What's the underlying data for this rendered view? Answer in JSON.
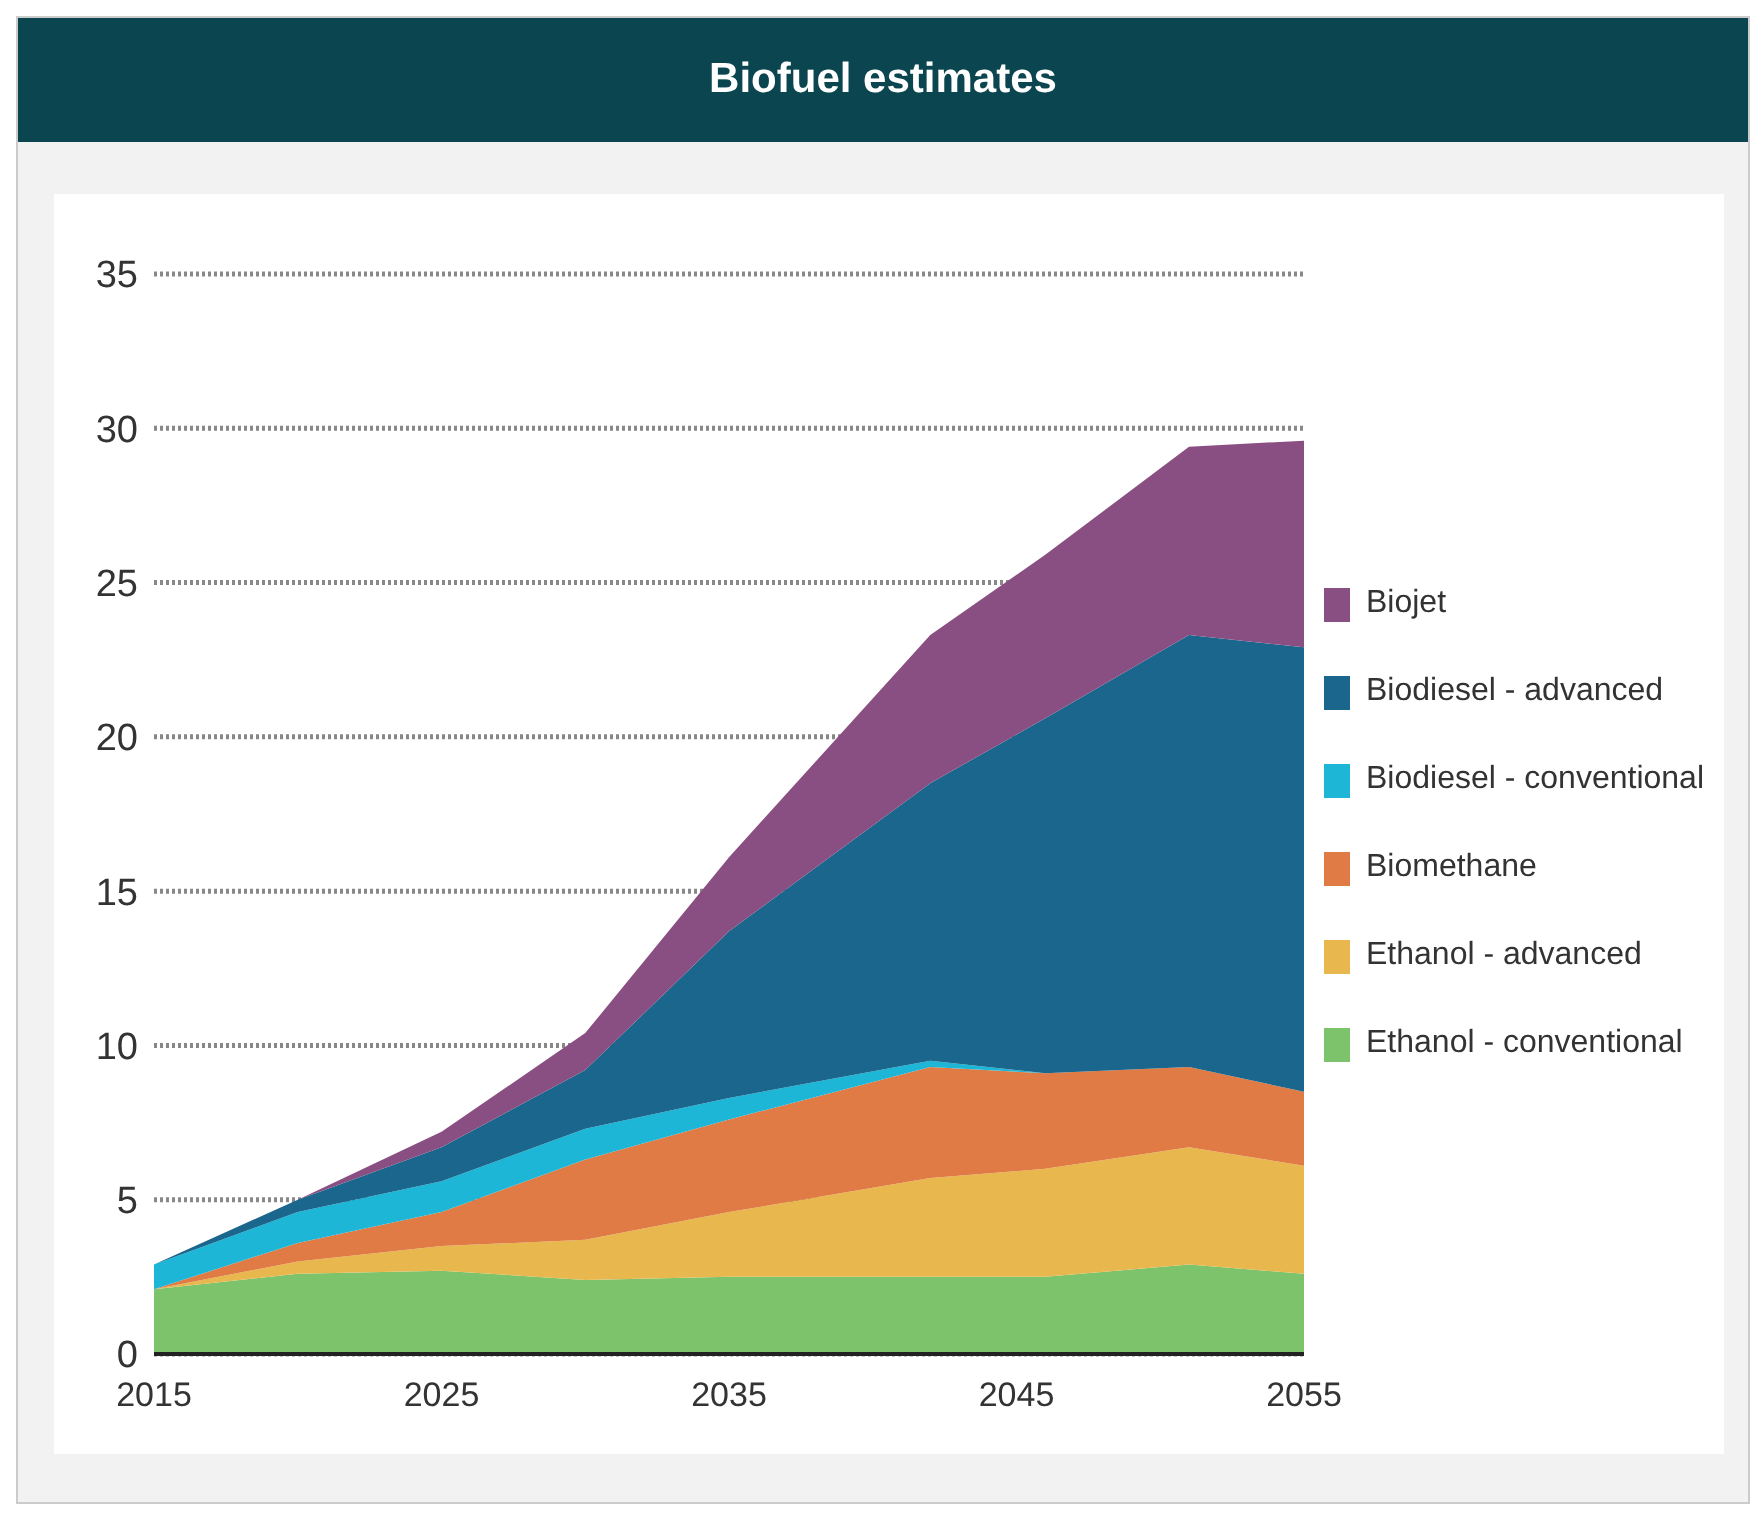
{
  "chart_data": {
    "type": "area",
    "title": "Biofuel estimates",
    "stacked": true,
    "x": [
      2015,
      2020,
      2025,
      2030,
      2035,
      2042,
      2046,
      2051,
      2055
    ],
    "xlim": [
      2015,
      2055
    ],
    "xticks": [
      2015,
      2025,
      2035,
      2045,
      2055
    ],
    "ylim": [
      0,
      35
    ],
    "yticks": [
      0,
      5,
      10,
      15,
      20,
      25,
      30,
      35
    ],
    "grid": "y",
    "legend": "right",
    "series": [
      {
        "name": "Ethanol - conventional",
        "color": "#7dc36b",
        "values": [
          2.1,
          2.6,
          2.7,
          2.4,
          2.5,
          2.5,
          2.5,
          2.9,
          2.6
        ]
      },
      {
        "name": "Ethanol - advanced",
        "color": "#e8b84f",
        "values": [
          0,
          0.4,
          0.8,
          1.3,
          2.1,
          3.2,
          3.5,
          3.8,
          3.5
        ]
      },
      {
        "name": "Biomethane",
        "color": "#e07b45",
        "values": [
          0,
          0.6,
          1.1,
          2.6,
          3.0,
          3.6,
          3.1,
          2.6,
          2.4
        ]
      },
      {
        "name": "Biodiesel - conventional",
        "color": "#1db6d6",
        "values": [
          0.8,
          1.0,
          1.0,
          1.0,
          0.7,
          0.2,
          0,
          0,
          0
        ]
      },
      {
        "name": "Biodiesel - advanced",
        "color": "#1a668c",
        "values": [
          0,
          0.4,
          1.1,
          1.9,
          5.4,
          9.0,
          11.5,
          14.0,
          14.4
        ]
      },
      {
        "name": "Biojet",
        "color": "#8a4f82",
        "values": [
          0,
          0,
          0.5,
          1.2,
          2.4,
          4.8,
          5.3,
          6.1,
          6.7
        ]
      }
    ]
  }
}
